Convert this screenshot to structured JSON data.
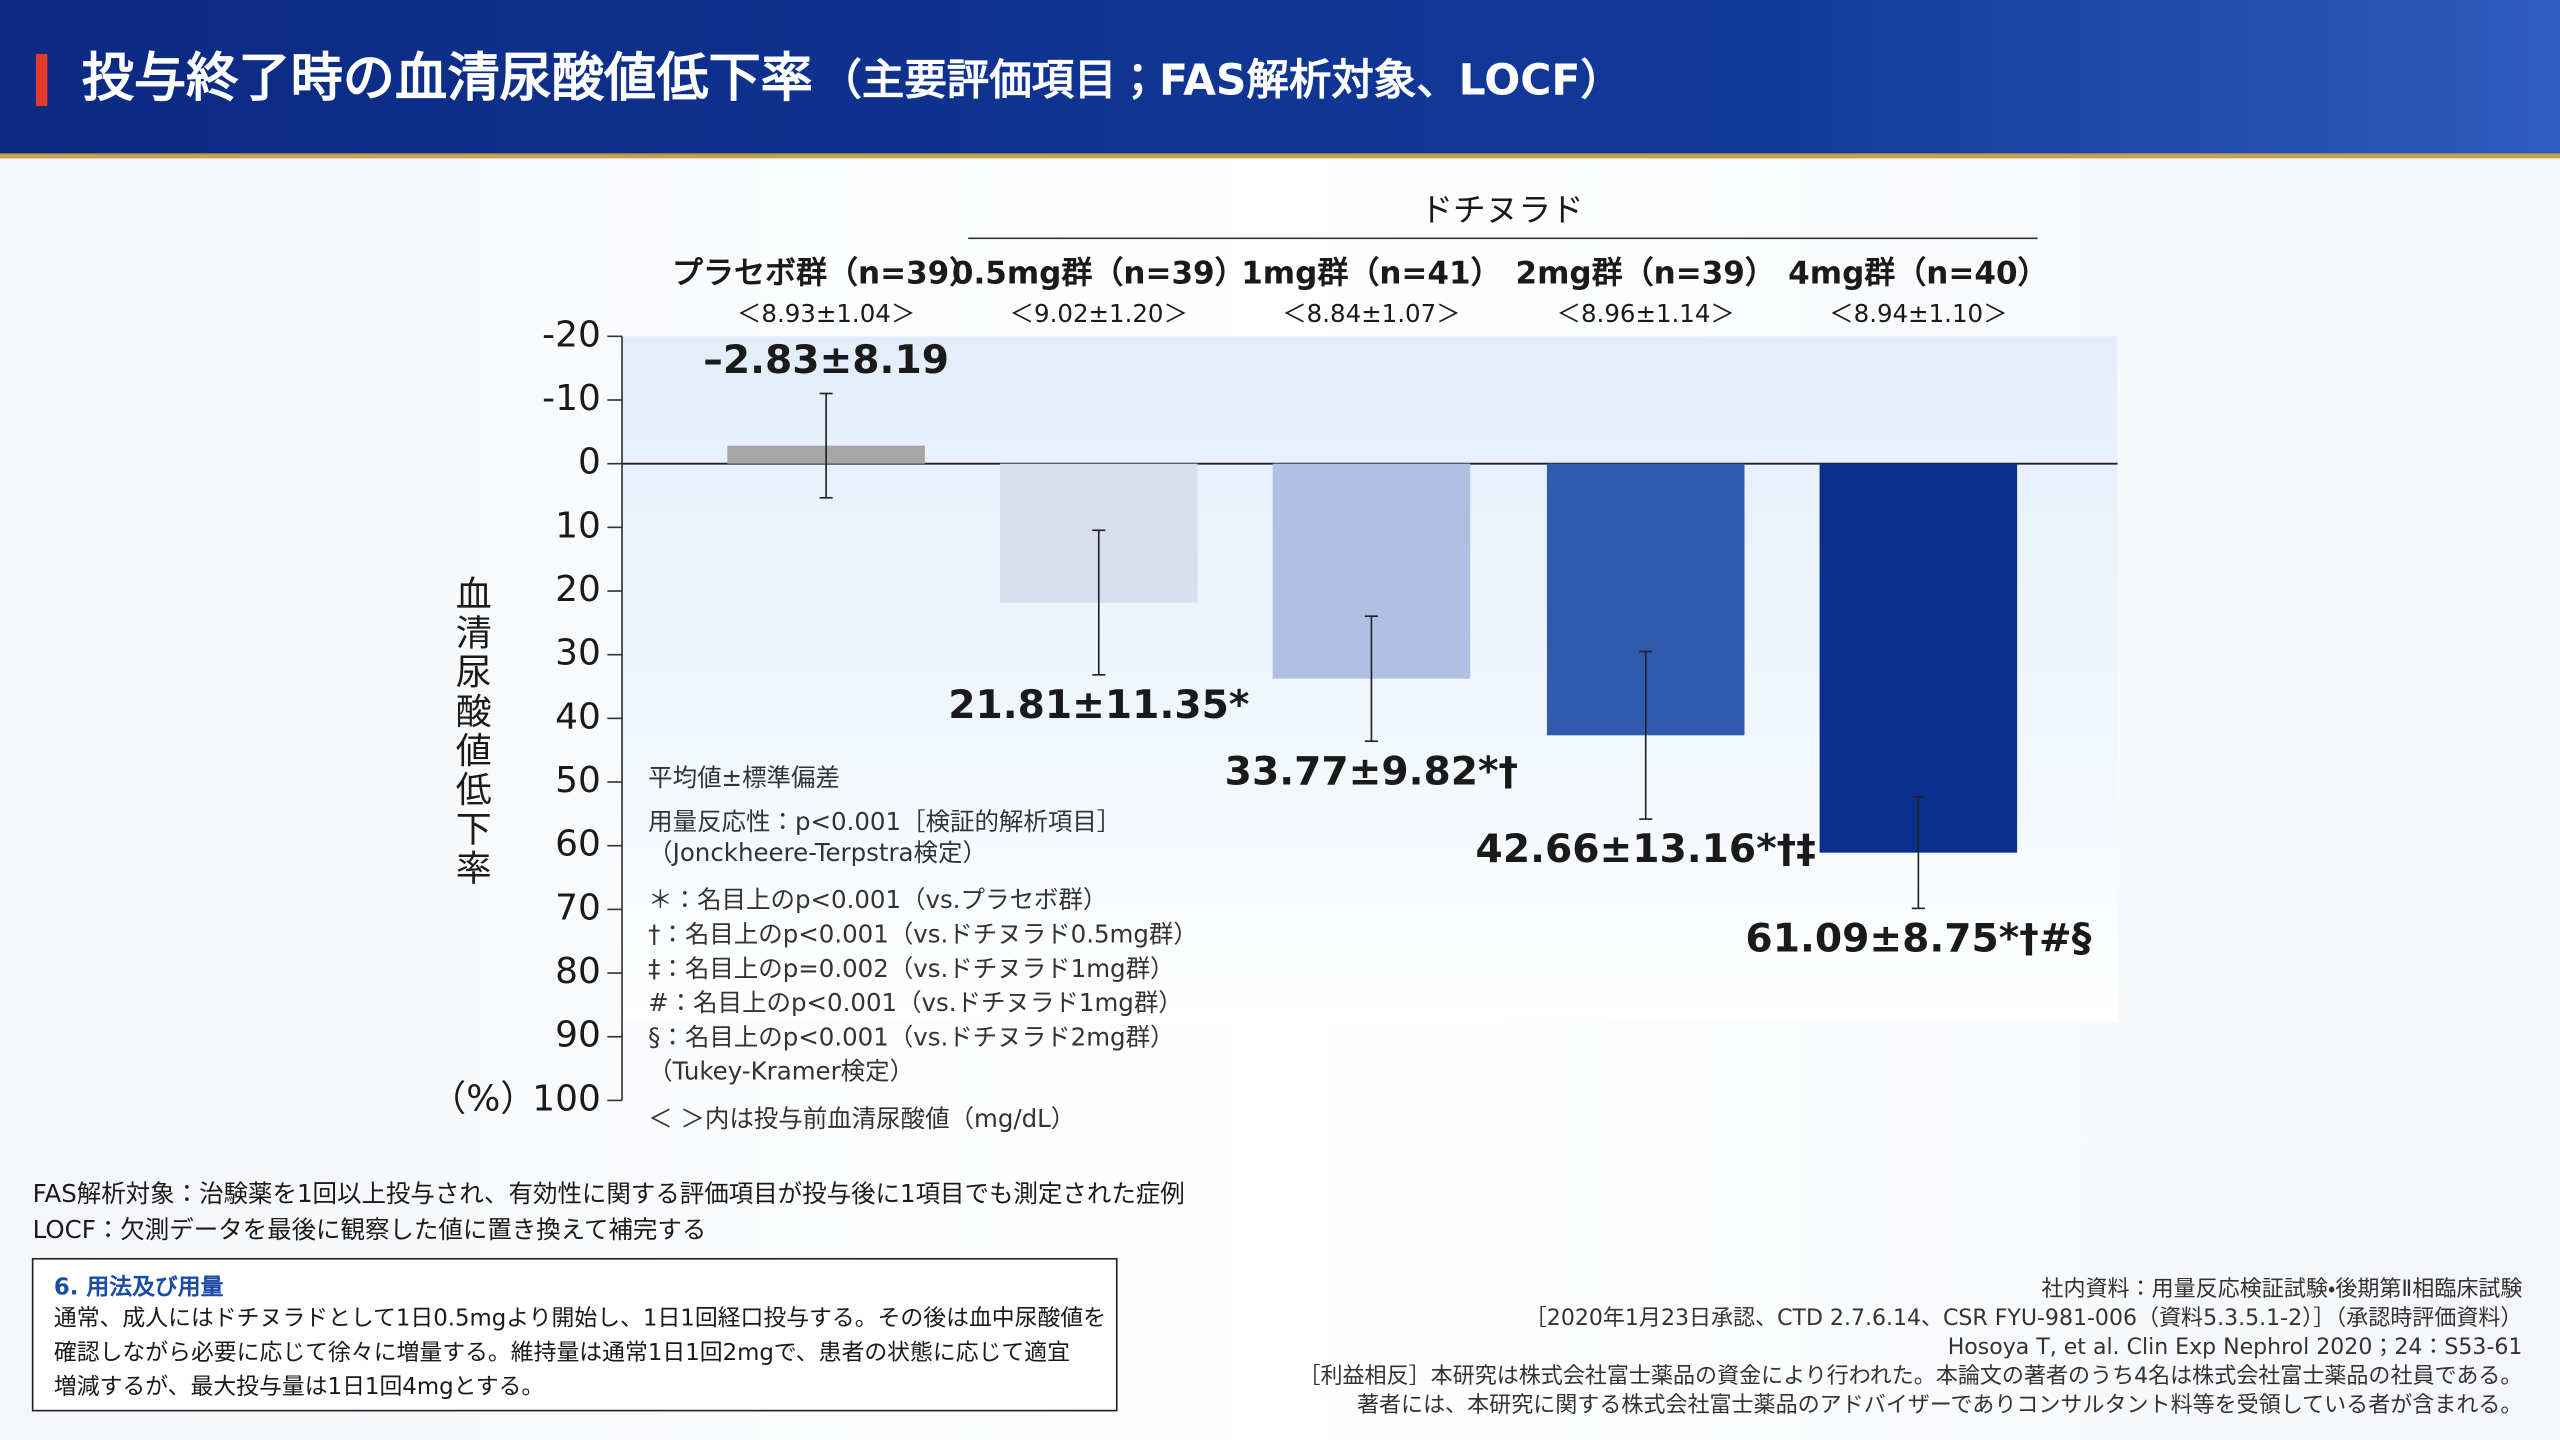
{
  "header": {
    "title": "投与終了時の血清尿酸値低下率",
    "subtitle": "（主要評価項目；FAS解析対象、LOCF）"
  },
  "chart_data": {
    "type": "bar",
    "group_label": "ドチヌラド",
    "categories": [
      "プラセボ群（n=39）",
      "0.5mg群（n=39）",
      "1mg群（n=41）",
      "2mg群（n=39）",
      "4mg群（n=40）"
    ],
    "baseline_labels": [
      "＜8.93±1.04＞",
      "＜9.02±1.20＞",
      "＜8.84±1.07＞",
      "＜8.96±1.14＞",
      "＜8.94±1.10＞"
    ],
    "values": [
      -2.83,
      21.81,
      33.77,
      42.66,
      61.09
    ],
    "errors": [
      8.19,
      11.35,
      9.82,
      13.16,
      8.75
    ],
    "value_labels": [
      "–2.83±8.19",
      "21.81±11.35*",
      "33.77±9.82*†",
      "42.66±13.16*†‡",
      "61.09±8.75*†#§"
    ],
    "colors": [
      "#a6a6a6",
      "#d9deee",
      "#b0c0e2",
      "#2f5aad",
      "#0a2f8c"
    ],
    "y_label": "血清尿酸値低下率",
    "y_unit": "（%）",
    "ylim": [
      -20,
      100
    ],
    "y_inverted": true,
    "yticks": [
      -20,
      -10,
      0,
      10,
      20,
      30,
      40,
      50,
      60,
      70,
      80,
      90,
      100
    ],
    "notes": [
      "平均値±標準偏差",
      "用量反応性：p<0.001［検証的解析項目］",
      "（Jonckheere-Terpstra検定）",
      "＊：名目上のp<0.001（vs.プラセボ群）",
      "†：名目上のp<0.001（vs.ドチヌラド0.5mg群）",
      "‡：名目上のp=0.002（vs.ドチヌラド1mg群）",
      "#：名目上のp<0.001（vs.ドチヌラド1mg群）",
      "§：名目上のp<0.001（vs.ドチヌラド2mg群）",
      "（Tukey-Kramer検定）",
      "＜ ＞内は投与前血清尿酸値（mg/dL）"
    ]
  },
  "footnotes": [
    "FAS解析対象：治験薬を1回以上投与され、有効性に関する評価項目が投与後に1項目でも測定された症例",
    "LOCF：欠測データを最後に観察した値に置き換えて補完する"
  ],
  "dosage": {
    "title": "6. 用法及び用量",
    "lines": [
      "通常、成人にはドチヌラドとして1日0.5mgより開始し、1日1回経口投与する。その後は血中尿酸値を",
      "確認しながら必要に応じて徐々に増量する。維持量は通常1日1回2mgで、患者の状態に応じて適宜",
      "増減するが、最大投与量は1日1回4mgとする。"
    ]
  },
  "sources": [
    "社内資料：用量反応検証試験・後期第Ⅱ相臨床試験",
    "［2020年1月23日承認、CTD 2.7.6.14、CSR FYU-981-006（資料5.3.5.1-2）］（承認時評価資料）",
    "Hosoya T, et al. Clin Exp Nephrol 2020；24：S53-61",
    "［利益相反］本研究は株式会社富士薬品の資金により行われた。本論文の著者のうち4名は株式会社富士薬品の社員である。",
    "著者には、本研究に関する株式会社富士薬品のアドバイザーでありコンサルタント料等を受領している者が含まれる。"
  ]
}
